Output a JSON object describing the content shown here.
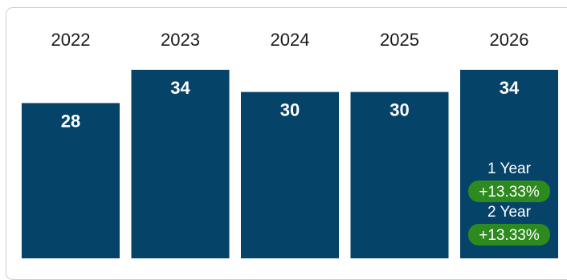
{
  "chart_data": {
    "type": "bar",
    "categories": [
      "2022",
      "2023",
      "2024",
      "2025",
      "2026"
    ],
    "values": [
      28,
      34,
      30,
      30,
      34
    ],
    "title": "",
    "xlabel": "",
    "ylabel": "",
    "ylim": [
      0,
      34
    ],
    "grid": false,
    "legend": "none",
    "bar_color": "#064369",
    "badge_color": "#2d8a1e",
    "annotations": [
      {
        "category": "2026",
        "label": "1 Year",
        "change": "+13.33%"
      },
      {
        "category": "2026",
        "label": "2 Year",
        "change": "+13.33%"
      }
    ]
  }
}
